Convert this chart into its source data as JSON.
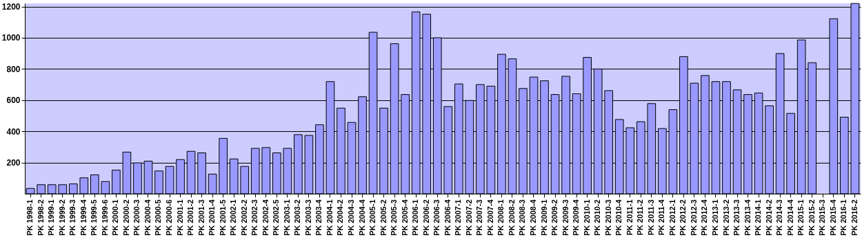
{
  "chart_data": {
    "type": "bar",
    "categories": [
      "PK 1998-1",
      "PK 1998-2",
      "PK 1999-1",
      "PK 1999-2",
      "PK 1999-3",
      "PK 1999-4",
      "PK 1999-5",
      "PK 1999-6",
      "PK 2000-1",
      "PK 2000-2",
      "PK 2000-3",
      "PK 2000-4",
      "PK 2000-5",
      "PK 2000-6",
      "PK 2001-1",
      "PK 2001-2",
      "PK 2001-3",
      "PK 2001-4",
      "PK 2001-5",
      "PK 2002-1",
      "PK 2002-2",
      "PK 2002-3",
      "PK 2002-4",
      "PK 2002-5",
      "PK 2003-1",
      "PK 2003-2",
      "PK 2003-3",
      "PK 2003-4",
      "PK 2004-1",
      "PK 2004-2",
      "PK 2004-3",
      "PK 2004-4",
      "PK 2005-1",
      "PK 2005-2",
      "PK 2005-3",
      "PK 2005-4",
      "PK 2006-1",
      "PK 2006-2",
      "PK 2006-3",
      "PK 2006-4",
      "PK 2007-1",
      "PK 2007-2",
      "PK 2007-3",
      "PK 2007-4",
      "PK 2008-1",
      "PK 2008-2",
      "PK 2008-3",
      "PK 2008-4",
      "PK 2009-1",
      "PK 2009-2",
      "PK 2009-3",
      "PK 2009-4",
      "PK 2010-1",
      "PK 2010-2",
      "PK 2010-3",
      "PK 2010-4",
      "PK 2011-1",
      "PK 2011-2",
      "PK 2011-3",
      "PK 2011-4",
      "PK 2012-1",
      "PK 2012-2",
      "PK 2012-3",
      "PK 2012-4",
      "PK 2013-1",
      "PK 2013-2",
      "PK 2013-3",
      "PK 2013-4",
      "PK 2014-1",
      "PK 2014-2",
      "PK 2014-3",
      "PK 2014-4",
      "PK 2015-1",
      "PK 2015-2",
      "PK 2015-3",
      "PK 2015-4",
      "PK 2016-1",
      "PK 2016-2"
    ],
    "values": [
      34,
      58,
      58,
      58,
      63,
      102,
      121,
      78,
      151,
      267,
      198,
      209,
      146,
      175,
      219,
      272,
      262,
      126,
      355,
      223,
      175,
      291,
      296,
      262,
      291,
      379,
      374,
      442,
      719,
      549,
      457,
      622,
      1035,
      549,
      962,
      636,
      1166,
      1151,
      1000,
      559,
      704,
      598,
      700,
      690,
      894,
      865,
      675,
      748,
      724,
      636,
      753,
      641,
      874,
      800,
      661,
      476,
      423,
      462,
      578,
      418,
      539,
      879,
      709,
      758,
      719,
      719,
      666,
      636,
      646,
      564,
      899,
      515,
      986,
      840,
      null,
      1122,
      491,
      1220
    ],
    "color": "#9999ff",
    "ylim": [
      0,
      1220
    ],
    "yticks": [
      200,
      400,
      600,
      800,
      1000,
      1200
    ],
    "grid": "y"
  }
}
